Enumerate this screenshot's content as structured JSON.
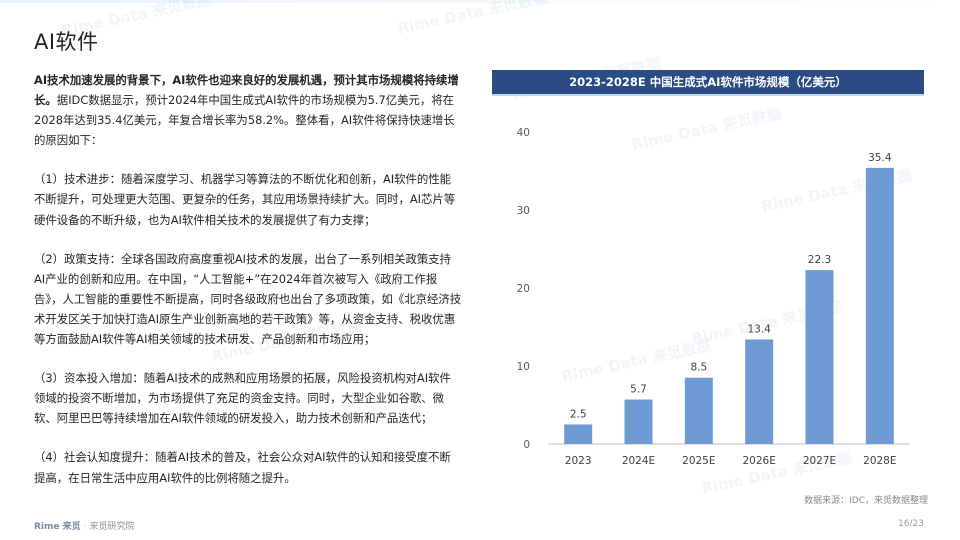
{
  "page": {
    "title": "AI软件",
    "paragraphs": {
      "lead_bold": "AI技术加速发展的背景下，AI软件也迎来良好的发展机遇，预计其市场规模将持续增长。",
      "lead_rest": "据IDC数据显示，预计2024年中国生成式AI软件的市场规模为5.7亿美元，将在2028年达到35.4亿美元，年复合增长率为58.2%。整体看，AI软件将保持快速增长的原因如下：",
      "p1": "（1）技术进步：随着深度学习、机器学习等算法的不断优化和创新，AI软件的性能不断提升，可处理更大范围、更复杂的任务，其应用场景持续扩大。同时，AI芯片等硬件设备的不断升级，也为AI软件相关技术的发展提供了有力支撑；",
      "p2": "（2）政策支持：全球各国政府高度重视AI技术的发展，出台了一系列相关政策支持AI产业的创新和应用。在中国，“人工智能+”在2024年首次被写入《政府工作报告》，人工智能的重要性不断提高，同时各级政府也出台了多项政策，如《北京经济技术开发区关于加快打造AI原生产业创新高地的若干政策》等，从资金支持、税收优惠等方面鼓励AI软件等AI相关领域的技术研发、产品创新和市场应用；",
      "p3": "（3）资本投入增加：随着AI技术的成熟和应用场景的拓展，风险投资机构对AI软件领域的投资不断增加，为市场提供了充足的资金支持。同时，大型企业如谷歌、微软、阿里巴巴等持续增加在AI软件领域的研发投入，助力技术创新和产品迭代；",
      "p4": "（4）社会认知度提升：随着AI技术的普及，社会公众对AI软件的认知和接受度不断提高，在日常生活中应用AI软件的比例将随之提升。"
    },
    "source": "数据来源：IDC，来觅数据整理",
    "footer_logo": "Rime 来觅",
    "footer_sep": "·",
    "footer_inst": "来觅研究院",
    "page_number": "16/23",
    "watermark": "Rime Data 来觅数据"
  },
  "chart_data": {
    "type": "bar",
    "title": "2023-2028E 中国生成式AI软件市场规模（亿美元）",
    "categories": [
      "2023",
      "2024E",
      "2025E",
      "2026E",
      "2027E",
      "2028E"
    ],
    "values": [
      2.5,
      5.7,
      8.5,
      13.4,
      22.3,
      35.4
    ],
    "value_labels": [
      "2.5",
      "5.7",
      "8.5",
      "13.4",
      "22.3",
      "35.4"
    ],
    "yticks": [
      0,
      10,
      20,
      30,
      40
    ],
    "ylim": [
      0,
      40
    ],
    "xlabel": "",
    "ylabel": "",
    "bar_color": "#6e9bd3",
    "grid": false,
    "legend": "none"
  }
}
